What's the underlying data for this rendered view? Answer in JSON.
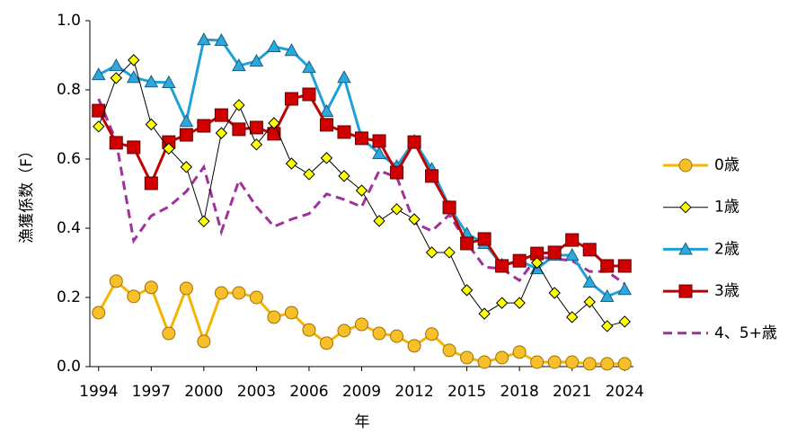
{
  "chart_data": {
    "type": "line",
    "x_label": "年",
    "y_label": "漁獲係数（F）",
    "x": [
      1994,
      1995,
      1996,
      1997,
      1998,
      1999,
      2000,
      2001,
      2002,
      2003,
      2004,
      2005,
      2006,
      2007,
      2008,
      2009,
      2010,
      2011,
      2012,
      2013,
      2014,
      2015,
      2016,
      2017,
      2018,
      2019,
      2020,
      2021,
      2022,
      2023,
      2024
    ],
    "xlim": [
      1993.5,
      2024.5
    ],
    "xticks": [
      1994,
      1997,
      2000,
      2003,
      2006,
      2009,
      2012,
      2015,
      2018,
      2021,
      2024
    ],
    "ylim": [
      0,
      1
    ],
    "yticks": [
      {
        "value": 0,
        "label": "0.0"
      },
      0.2,
      0.4,
      0.6,
      0.8,
      {
        "value": 1,
        "label": "1.0"
      }
    ],
    "legend": "right",
    "series": [
      {
        "name": "0歳",
        "color": "#f5b400",
        "marker": "circle",
        "marker_fill": "#f7c02a",
        "marker_stroke": "#a07000",
        "width": 3,
        "dash": false,
        "values": [
          0.156,
          0.247,
          0.203,
          0.229,
          0.096,
          0.226,
          0.073,
          0.213,
          0.213,
          0.2,
          0.143,
          0.156,
          0.106,
          0.068,
          0.104,
          0.122,
          0.096,
          0.088,
          0.06,
          0.094,
          0.047,
          0.026,
          0.013,
          0.026,
          0.042,
          0.013,
          0.013,
          0.013,
          0.008,
          0.008,
          0.008
        ]
      },
      {
        "name": "1歳",
        "color": "#000000",
        "marker": "diamond",
        "marker_fill": "#ffff00",
        "marker_stroke": "#000000",
        "width": 1,
        "dash": false,
        "values": [
          0.694,
          0.834,
          0.886,
          0.7,
          0.63,
          0.577,
          0.42,
          0.675,
          0.756,
          0.642,
          0.704,
          0.587,
          0.556,
          0.603,
          0.551,
          0.509,
          0.421,
          0.455,
          0.426,
          0.33,
          0.33,
          0.221,
          0.153,
          0.184,
          0.184,
          0.3,
          0.213,
          0.143,
          0.187,
          0.117,
          0.13
        ]
      },
      {
        "name": "2歳",
        "color": "#1fa0d8",
        "marker": "triangle",
        "marker_fill": "#2ca8dc",
        "marker_stroke": "#1a5f80",
        "width": 3,
        "dash": false,
        "values": [
          0.844,
          0.87,
          0.836,
          0.823,
          0.821,
          0.709,
          0.945,
          0.943,
          0.87,
          0.883,
          0.925,
          0.914,
          0.865,
          0.738,
          0.836,
          0.66,
          0.616,
          0.579,
          0.652,
          0.571,
          0.462,
          0.384,
          0.356,
          0.294,
          0.306,
          0.283,
          0.322,
          0.322,
          0.244,
          0.203,
          0.223
        ]
      },
      {
        "name": "3歳",
        "color": "#c00000",
        "marker": "square",
        "marker_fill": "#d00000",
        "marker_stroke": "#600000",
        "width": 3,
        "dash": false,
        "values": [
          0.74,
          0.647,
          0.634,
          0.53,
          0.649,
          0.67,
          0.696,
          0.727,
          0.686,
          0.691,
          0.673,
          0.774,
          0.787,
          0.699,
          0.678,
          0.66,
          0.652,
          0.561,
          0.649,
          0.551,
          0.46,
          0.356,
          0.369,
          0.291,
          0.306,
          0.327,
          0.33,
          0.366,
          0.338,
          0.291,
          0.291
        ]
      },
      {
        "name": "4、5+歳",
        "color": "#a0309a",
        "marker": "none",
        "width": 3,
        "dash": true,
        "values": [
          0.774,
          0.652,
          0.364,
          0.436,
          0.462,
          0.506,
          0.577,
          0.39,
          0.538,
          0.462,
          0.405,
          0.426,
          0.442,
          0.499,
          0.483,
          0.462,
          0.566,
          0.548,
          0.416,
          0.392,
          0.439,
          0.358,
          0.288,
          0.283,
          0.249,
          0.317,
          0.312,
          0.306,
          0.275,
          0.275,
          0.239
        ]
      }
    ]
  }
}
